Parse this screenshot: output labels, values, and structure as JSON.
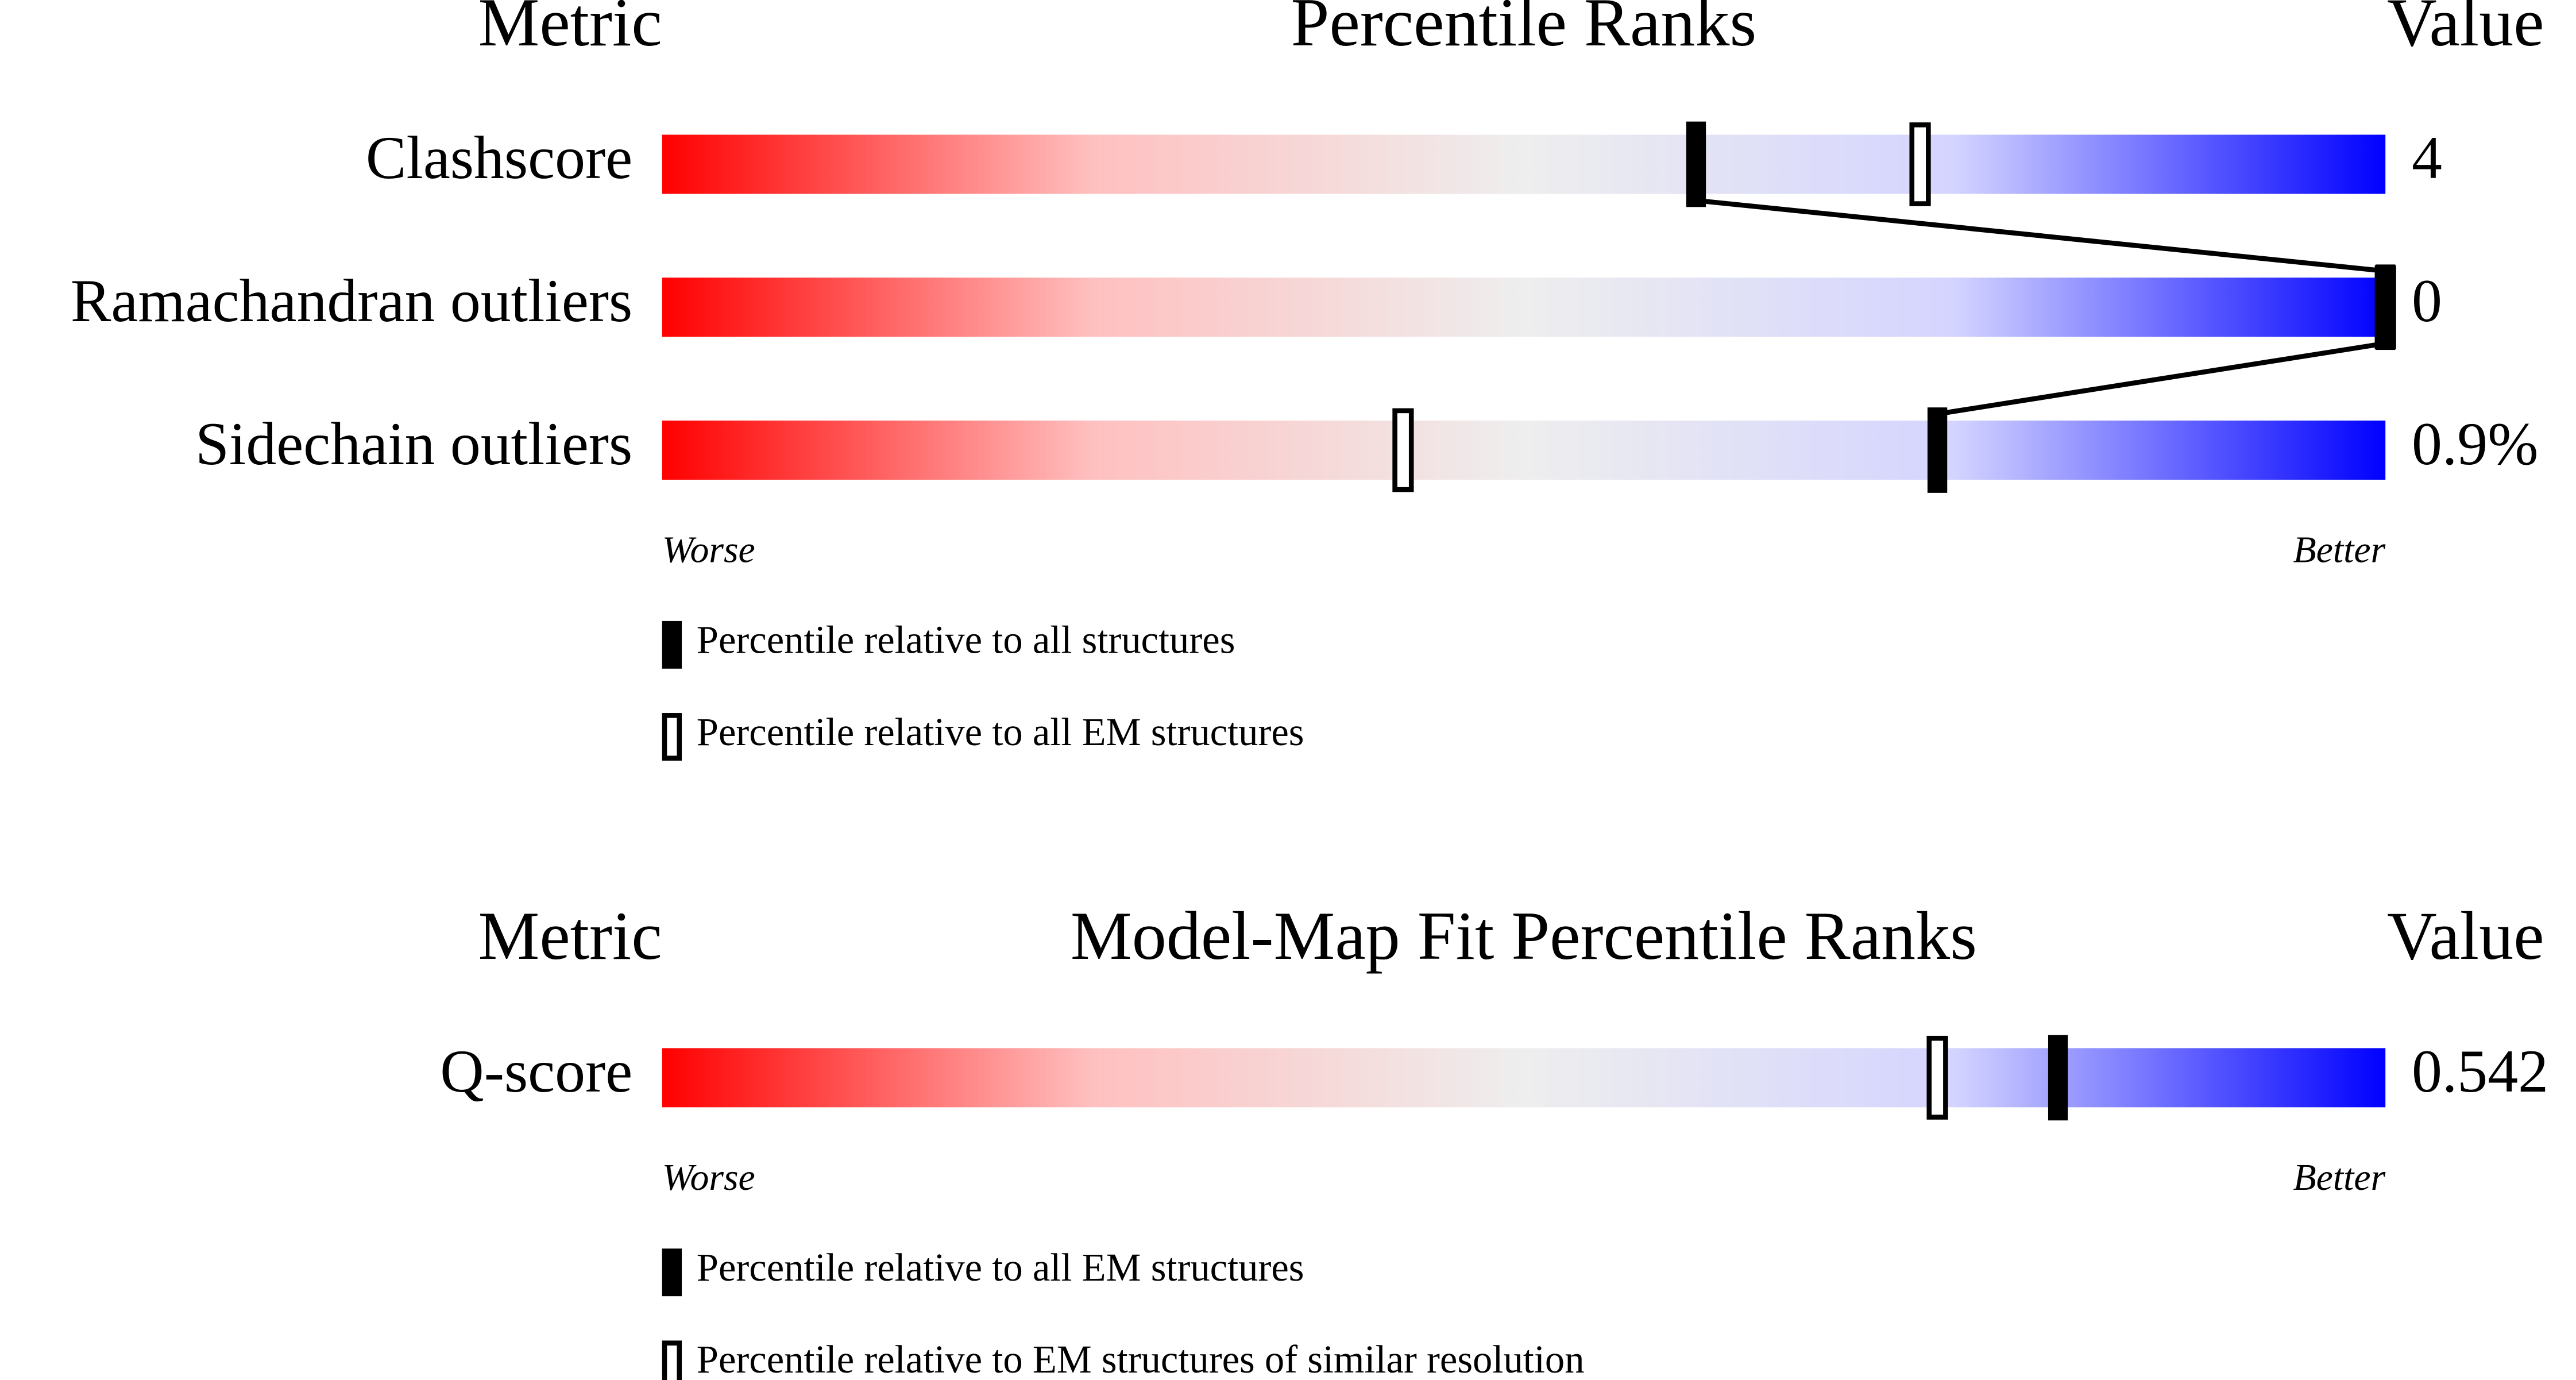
{
  "chart_data": [
    {
      "type": "slider",
      "metric_header": "Metric",
      "title": "Percentile Ranks",
      "value_header": "Value",
      "categories": [
        "Clashscore",
        "Ramachandran outliers",
        "Sidechain outliers"
      ],
      "value_texts": [
        "4",
        "0",
        "0.9%"
      ],
      "xlim": [
        0,
        100
      ],
      "x_low_label": "Worse",
      "x_high_label": "Better",
      "series": [
        {
          "name": "Percentile relative to all structures",
          "style": "filled",
          "color": "#000000",
          "values": [
            60,
            100,
            74
          ]
        },
        {
          "name": "Percentile relative to all EM structures",
          "style": "open",
          "color": "#000000",
          "values": [
            73,
            100,
            43
          ]
        }
      ]
    },
    {
      "type": "slider",
      "metric_header": "Metric",
      "title": "Model-Map Fit Percentile Ranks",
      "value_header": "Value",
      "categories": [
        "Q-score"
      ],
      "value_texts": [
        "0.542"
      ],
      "xlim": [
        0,
        100
      ],
      "x_low_label": "Worse",
      "x_high_label": "Better",
      "series": [
        {
          "name": "Percentile relative to all EM structures",
          "style": "filled",
          "color": "#000000",
          "values": [
            81
          ]
        },
        {
          "name": "Percentile relative to EM structures of similar resolution",
          "style": "open",
          "color": "#000000",
          "values": [
            74
          ]
        }
      ]
    }
  ]
}
